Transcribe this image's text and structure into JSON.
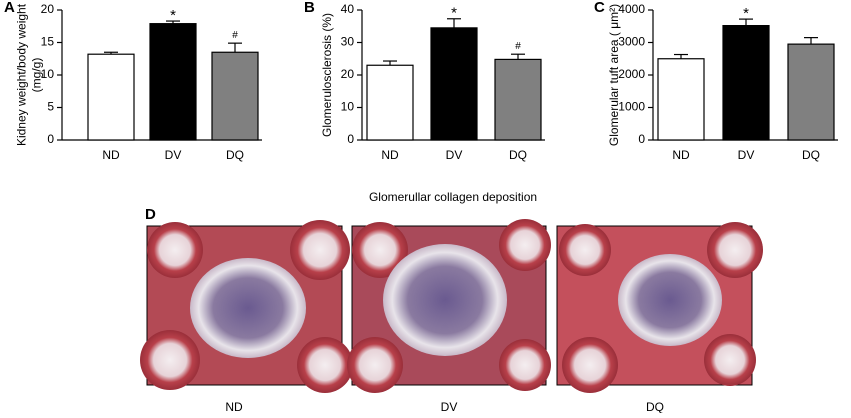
{
  "chart_data": [
    {
      "type": "bar",
      "label": "A",
      "ylabel": [
        "Kidney weight/body weight",
        "(mg/g)"
      ],
      "categories": [
        "ND",
        "DV",
        "DQ"
      ],
      "values": [
        13.2,
        17.9,
        13.5
      ],
      "errors": [
        0.3,
        0.4,
        1.4
      ],
      "colors": [
        "#ffffff",
        "#000000",
        "#808080"
      ],
      "annotations": [
        null,
        "*",
        "#"
      ],
      "ylim": [
        0,
        20
      ],
      "yticks": [
        0,
        5,
        10,
        15,
        20
      ]
    },
    {
      "type": "bar",
      "label": "B",
      "ylabel": [
        "Glomerulosclerosis (%)"
      ],
      "categories": [
        "ND",
        "DV",
        "DQ"
      ],
      "values": [
        23,
        34.5,
        24.8
      ],
      "errors": [
        1.3,
        2.8,
        1.6
      ],
      "colors": [
        "#ffffff",
        "#000000",
        "#808080"
      ],
      "annotations": [
        null,
        "*",
        "#"
      ],
      "ylim": [
        0,
        40
      ],
      "yticks": [
        0,
        10,
        20,
        30,
        40
      ]
    },
    {
      "type": "bar",
      "label": "C",
      "ylabel": [
        "Glomerular tuft area ( μm²)"
      ],
      "categories": [
        "ND",
        "DV",
        "DQ"
      ],
      "values": [
        2500,
        3520,
        2950
      ],
      "errors": [
        130,
        200,
        200
      ],
      "colors": [
        "#ffffff",
        "#000000",
        "#808080"
      ],
      "annotations": [
        null,
        "*",
        null
      ],
      "ylim": [
        0,
        4000
      ],
      "yticks": [
        0,
        1000,
        2000,
        3000,
        4000
      ]
    }
  ],
  "panel_d": {
    "label": "D",
    "title": "Glomerullar collagen deposition",
    "images": [
      {
        "label": "ND"
      },
      {
        "label": "DV"
      },
      {
        "label": "DQ"
      }
    ]
  }
}
